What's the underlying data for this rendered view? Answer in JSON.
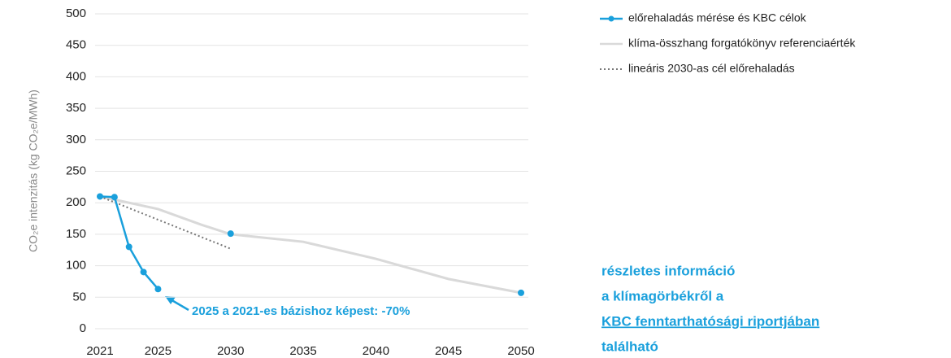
{
  "chart_data": {
    "type": "line",
    "y_label": "CO₂e intenzitás (kg CO₂e/MWh)",
    "xlim": [
      2021,
      2050
    ],
    "xticks": [
      2021,
      2025,
      2030,
      2035,
      2040,
      2045,
      2050
    ],
    "ylim": [
      0,
      500
    ],
    "yticks": [
      0,
      50,
      100,
      150,
      200,
      250,
      300,
      350,
      400,
      450,
      500
    ],
    "grid": true,
    "series": [
      {
        "name": "klíma-összhang forgatókönyv referenciaérték",
        "color": "#d9d9d9",
        "style": "solid",
        "markers": false,
        "x": [
          2021,
          2025,
          2028,
          2030,
          2035,
          2040,
          2045,
          2050
        ],
        "values": [
          210,
          190,
          165,
          150,
          138,
          111,
          79,
          57
        ]
      },
      {
        "name": "lineáris 2030-as cél előrehaladás",
        "color": "#777777",
        "style": "dotted",
        "markers": false,
        "x": [
          2021,
          2030
        ],
        "values": [
          210,
          127
        ]
      },
      {
        "name": "előrehaladás mérése és KBC célok",
        "color": "#1aa0dc",
        "style": "solid",
        "markers": true,
        "x": [
          2021,
          2022,
          2023,
          2024,
          2025,
          null,
          2030,
          null,
          2050
        ],
        "values": [
          210,
          209,
          130,
          90,
          63,
          null,
          151,
          null,
          57
        ]
      }
    ],
    "legend_order": [
      2,
      0,
      1
    ],
    "annotation": "2025 a 2021-es bázishoz képest: -70%",
    "info": {
      "lines": [
        "részletes információ",
        "a klímagörbékről a",
        "KBC fenntarthatósági riportjában",
        "található"
      ],
      "link_line": 2
    }
  }
}
